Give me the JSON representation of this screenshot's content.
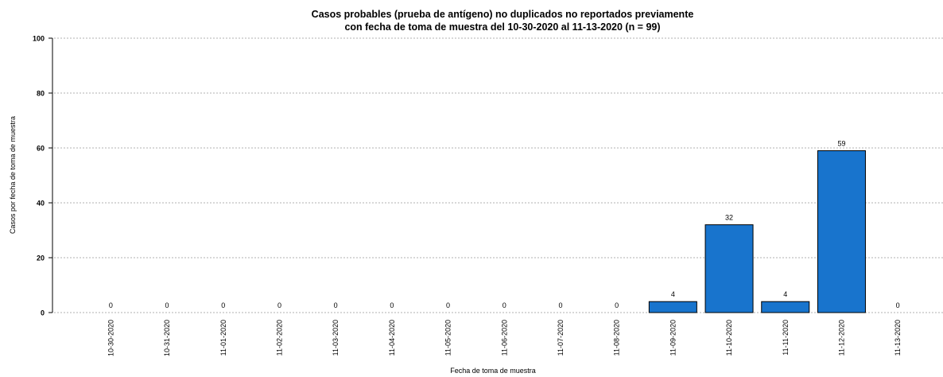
{
  "chart_data": {
    "type": "bar",
    "title": [
      "Casos probables (prueba de antígeno) no duplicados no reportados previamente",
      "con fecha de toma de muestra del 10-30-2020 al 11-13-2020 (n = 99)"
    ],
    "x_label": "Fecha de toma de muestra",
    "y_label": "Casos por fecha de toma de muestra",
    "categories": [
      "10-30-2020",
      "10-31-2020",
      "11-01-2020",
      "11-02-2020",
      "11-03-2020",
      "11-04-2020",
      "11-05-2020",
      "11-06-2020",
      "11-07-2020",
      "11-08-2020",
      "11-09-2020",
      "11-10-2020",
      "11-11-2020",
      "11-12-2020",
      "11-13-2020"
    ],
    "values": [
      0,
      0,
      0,
      0,
      0,
      0,
      0,
      0,
      0,
      0,
      4,
      32,
      4,
      59,
      0
    ],
    "color": "#1874cd",
    "ylim": [
      0,
      100
    ],
    "yticks": [
      0,
      20,
      40,
      60,
      80,
      100
    ],
    "grid": true
  }
}
